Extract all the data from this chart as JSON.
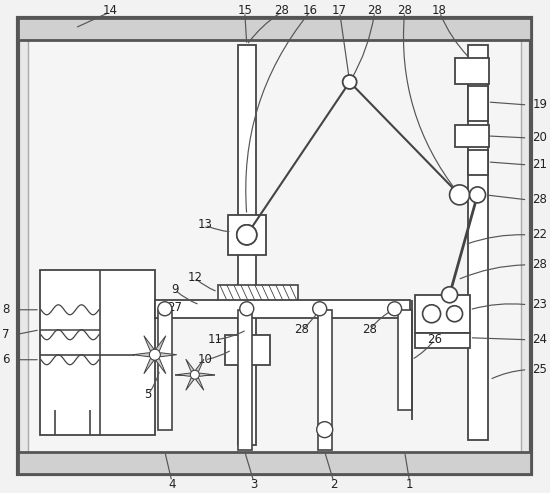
{
  "fig_w": 5.5,
  "fig_h": 4.93,
  "dpi": 100,
  "bg": "#f2f2f2",
  "lc": "#444444",
  "frame_fc": "#e8e8e8",
  "frame_inner_fc": "#f0f0f0"
}
